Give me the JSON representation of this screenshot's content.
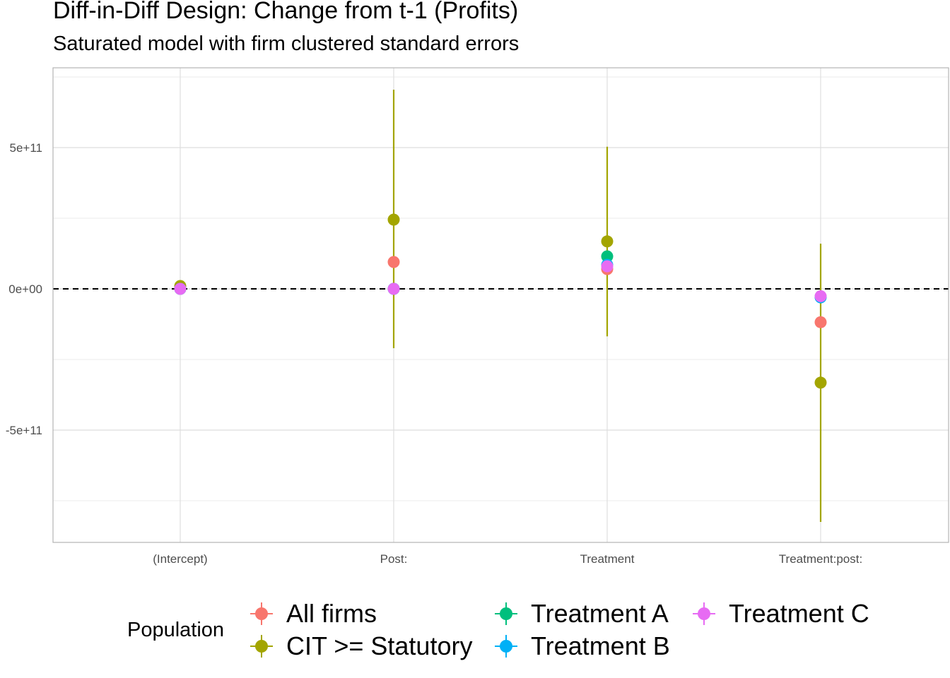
{
  "chart_data": {
    "type": "scatter",
    "title": "Diff-in-Diff Design: Change from t-1 (Profits)",
    "subtitle": "Saturated model with firm clustered standard errors",
    "xlabel": "",
    "ylabel": "",
    "categories": [
      "(Intercept)",
      "Post:",
      "Treatment",
      "Treatment:post:"
    ],
    "ylim": [
      -890000000000.0,
      780000000000.0
    ],
    "y_ticks": [
      {
        "value": -500000000000.0,
        "label": "-5e+11"
      },
      {
        "value": 0,
        "label": "0e+00"
      },
      {
        "value": 500000000000.0,
        "label": "5e+11"
      }
    ],
    "y_minor_ticks": [
      -750000000000.0,
      -250000000000.0,
      250000000000.0,
      750000000000.0
    ],
    "reference_line": {
      "value": 0,
      "style": "dashed"
    },
    "grid": true,
    "legend_position": "bottom",
    "legend_title": "Population",
    "series": [
      {
        "name": "All firms",
        "color": "#F8766D",
        "values": [
          1000000000.0,
          95000000000.0,
          70000000000.0,
          -118000000000.0
        ],
        "lower": [
          null,
          null,
          null,
          null
        ],
        "upper": [
          null,
          null,
          null,
          null
        ]
      },
      {
        "name": "CIT >= Statutory",
        "color": "#A3A500",
        "values": [
          10000000000.0,
          245000000000.0,
          168000000000.0,
          -332000000000.0
        ],
        "lower": [
          null,
          -210000000000.0,
          -168000000000.0,
          -825000000000.0
        ],
        "upper": [
          null,
          705000000000.0,
          503000000000.0,
          160000000000.0
        ]
      },
      {
        "name": "Treatment A",
        "color": "#00BF7D",
        "values": [
          0,
          0,
          115000000000.0,
          -28000000000.0
        ],
        "lower": [
          null,
          null,
          null,
          null
        ],
        "upper": [
          null,
          null,
          null,
          null
        ]
      },
      {
        "name": "Treatment B",
        "color": "#00B0F6",
        "values": [
          0,
          0,
          85000000000.0,
          -30000000000.0
        ],
        "lower": [
          null,
          null,
          null,
          null
        ],
        "upper": [
          null,
          null,
          null,
          null
        ]
      },
      {
        "name": "Treatment C",
        "color": "#E76BF3",
        "values": [
          0,
          0,
          80000000000.0,
          -26000000000.0
        ],
        "lower": [
          null,
          null,
          null,
          null
        ],
        "upper": [
          null,
          null,
          null,
          null
        ]
      }
    ]
  }
}
